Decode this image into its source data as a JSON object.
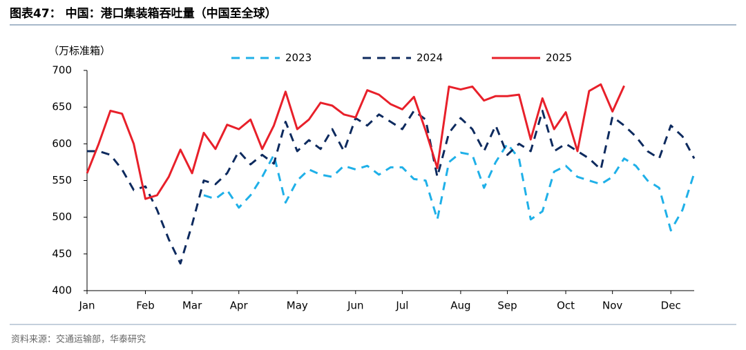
{
  "chart_data": {
    "type": "line",
    "title": "图表47： 中国：港口集装箱吞吐量（中国至全球）",
    "y_axis_label": "（万标准箱）",
    "source": "资料来源：交通运输部，华泰研究",
    "categories": [
      "Jan",
      null,
      null,
      null,
      null,
      "Feb",
      null,
      null,
      null,
      "Mar",
      null,
      null,
      null,
      "Apr",
      null,
      null,
      null,
      null,
      "May",
      null,
      null,
      null,
      null,
      "Jun",
      null,
      null,
      null,
      "Jul",
      null,
      null,
      null,
      null,
      "Aug",
      null,
      null,
      null,
      "Sep",
      null,
      null,
      null,
      null,
      "Oct",
      null,
      null,
      null,
      "Nov",
      null,
      null,
      null,
      null,
      "Dec",
      null,
      null
    ],
    "series": [
      {
        "name": "2023",
        "color": "#1fb0e8",
        "dashed": true,
        "values": [
          null,
          null,
          null,
          null,
          null,
          null,
          null,
          null,
          null,
          null,
          530,
          525,
          537,
          513,
          530,
          555,
          585,
          520,
          550,
          565,
          558,
          555,
          570,
          565,
          570,
          558,
          568,
          568,
          552,
          550,
          497,
          575,
          588,
          585,
          540,
          575,
          600,
          580,
          497,
          508,
          562,
          570,
          555,
          550,
          545,
          555,
          580,
          570,
          550,
          540,
          482,
          510,
          560
        ]
      },
      {
        "name": "2024",
        "color": "#0d2a5e",
        "dashed": true,
        "values": [
          590,
          590,
          585,
          565,
          537,
          542,
          510,
          470,
          437,
          490,
          550,
          545,
          560,
          590,
          572,
          585,
          573,
          630,
          590,
          605,
          593,
          620,
          590,
          635,
          625,
          640,
          630,
          620,
          645,
          633,
          555,
          615,
          635,
          620,
          590,
          625,
          585,
          600,
          590,
          645,
          590,
          600,
          590,
          580,
          565,
          637,
          625,
          610,
          590,
          580,
          625,
          610,
          580
        ]
      },
      {
        "name": "2025",
        "color": "#e8202a",
        "dashed": false,
        "values": [
          560,
          600,
          645,
          641,
          600,
          525,
          530,
          555,
          592,
          560,
          615,
          593,
          626,
          620,
          633,
          593,
          625,
          671,
          620,
          633,
          656,
          652,
          640,
          636,
          673,
          667,
          654,
          647,
          664,
          618,
          567,
          678,
          674,
          678,
          659,
          665,
          665,
          667,
          606,
          662,
          620,
          643,
          590,
          672,
          681,
          644,
          679,
          null,
          null,
          null,
          null,
          null,
          null
        ]
      }
    ],
    "ylim": [
      400,
      700
    ],
    "yticks": [
      400,
      450,
      500,
      550,
      600,
      650,
      700
    ],
    "legend": "top"
  }
}
